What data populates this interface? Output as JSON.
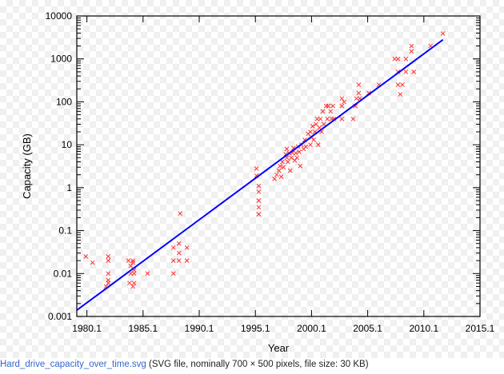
{
  "chart_data": {
    "type": "scatter",
    "xlabel": "Year",
    "ylabel": "Capacity (GB)",
    "y_scale": "log",
    "ylim": [
      0.001,
      10000
    ],
    "xlim": [
      1979.2,
      2015.1
    ],
    "x_ticks": [
      "1980.1",
      "1985.1",
      "1990.1",
      "1995.1",
      "2000.1",
      "2005.1",
      "2010.1",
      "2015.1"
    ],
    "y_ticks": [
      "0.001",
      "0.01",
      "0.1",
      "1",
      "10",
      "100",
      "1000",
      "10000"
    ],
    "grid": false,
    "legend": "none",
    "colors": {
      "points": "#ff0000",
      "fit_line": "#0000ff"
    },
    "points": [
      [
        1980.0,
        0.025
      ],
      [
        1980.6,
        0.018
      ],
      [
        1981.8,
        0.005
      ],
      [
        1982.0,
        0.025
      ],
      [
        1982.0,
        0.02
      ],
      [
        1982.0,
        0.01
      ],
      [
        1982.0,
        0.007
      ],
      [
        1982.0,
        0.006
      ],
      [
        1983.8,
        0.02
      ],
      [
        1984.0,
        0.015
      ],
      [
        1984.0,
        0.01
      ],
      [
        1984.2,
        0.02
      ],
      [
        1984.2,
        0.018
      ],
      [
        1984.3,
        0.012
      ],
      [
        1984.3,
        0.01
      ],
      [
        1983.9,
        0.006
      ],
      [
        1984.2,
        0.005
      ],
      [
        1984.3,
        0.006
      ],
      [
        1985.5,
        0.01
      ],
      [
        1987.8,
        0.04
      ],
      [
        1987.8,
        0.02
      ],
      [
        1987.8,
        0.01
      ],
      [
        1988.3,
        0.05
      ],
      [
        1988.3,
        0.03
      ],
      [
        1988.3,
        0.02
      ],
      [
        1989.0,
        0.04
      ],
      [
        1989.0,
        0.02
      ],
      [
        1988.4,
        0.25
      ],
      [
        1995.2,
        2.8
      ],
      [
        1995.2,
        1.9
      ],
      [
        1995.4,
        1.1
      ],
      [
        1995.4,
        0.8
      ],
      [
        1995.4,
        0.5
      ],
      [
        1995.4,
        0.35
      ],
      [
        1995.4,
        0.24
      ],
      [
        1996.8,
        1.6
      ],
      [
        1997.0,
        2.0
      ],
      [
        1997.2,
        2.5
      ],
      [
        1997.3,
        3.2
      ],
      [
        1997.4,
        1.8
      ],
      [
        1997.5,
        4.0
      ],
      [
        1997.6,
        3.0
      ],
      [
        1997.8,
        6.0
      ],
      [
        1997.9,
        5.0
      ],
      [
        1997.9,
        8.0
      ],
      [
        1998.0,
        4.0
      ],
      [
        1998.1,
        6.4
      ],
      [
        1998.2,
        2.5
      ],
      [
        1998.3,
        5.0
      ],
      [
        1998.4,
        6.5
      ],
      [
        1998.5,
        8.4
      ],
      [
        1998.6,
        4.3
      ],
      [
        1998.7,
        6.4
      ],
      [
        1998.8,
        5.0
      ],
      [
        1998.9,
        9.1
      ],
      [
        1999.0,
        6.8
      ],
      [
        1999.1,
        3.2
      ],
      [
        1999.2,
        10
      ],
      [
        1999.4,
        8.0
      ],
      [
        1999.5,
        13
      ],
      [
        1999.6,
        9.0
      ],
      [
        1999.8,
        18
      ],
      [
        2000.0,
        10
      ],
      [
        2000.0,
        20
      ],
      [
        2000.1,
        15
      ],
      [
        2000.2,
        27
      ],
      [
        2000.3,
        13
      ],
      [
        2000.4,
        20
      ],
      [
        2000.5,
        30
      ],
      [
        2000.6,
        40
      ],
      [
        2000.7,
        10
      ],
      [
        2000.8,
        25
      ],
      [
        2000.9,
        40
      ],
      [
        2001.0,
        20
      ],
      [
        2001.1,
        60
      ],
      [
        2001.2,
        30
      ],
      [
        2001.4,
        80
      ],
      [
        2001.5,
        40
      ],
      [
        2001.6,
        80
      ],
      [
        2001.8,
        60
      ],
      [
        2001.9,
        40
      ],
      [
        2002.0,
        80
      ],
      [
        2002.1,
        40
      ],
      [
        2002.8,
        40
      ],
      [
        2002.8,
        80
      ],
      [
        2002.8,
        120
      ],
      [
        2003.0,
        100
      ],
      [
        2003.8,
        40
      ],
      [
        2004.0,
        80
      ],
      [
        2004.1,
        120
      ],
      [
        2004.3,
        160
      ],
      [
        2004.3,
        250
      ],
      [
        2004.4,
        120
      ],
      [
        2005.2,
        160
      ],
      [
        2006.1,
        250
      ],
      [
        2007.5,
        1000
      ],
      [
        2007.8,
        1000
      ],
      [
        2007.8,
        500
      ],
      [
        2007.8,
        250
      ],
      [
        2008.2,
        250
      ],
      [
        2008.0,
        150
      ],
      [
        2008.5,
        500
      ],
      [
        2008.5,
        1000
      ],
      [
        2009.0,
        1500
      ],
      [
        2009.0,
        2000
      ],
      [
        2009.2,
        500
      ],
      [
        2010.7,
        2000
      ],
      [
        2011.8,
        3900
      ]
    ],
    "fit_line": [
      [
        1979.2,
        0.0014
      ],
      [
        2011.8,
        2800
      ]
    ]
  },
  "caption": {
    "file_link": "Hard_drive_capacity_over_time.svg",
    "info": " (SVG file, nominally 700 × 500 pixels, file size: 30 KB)"
  }
}
